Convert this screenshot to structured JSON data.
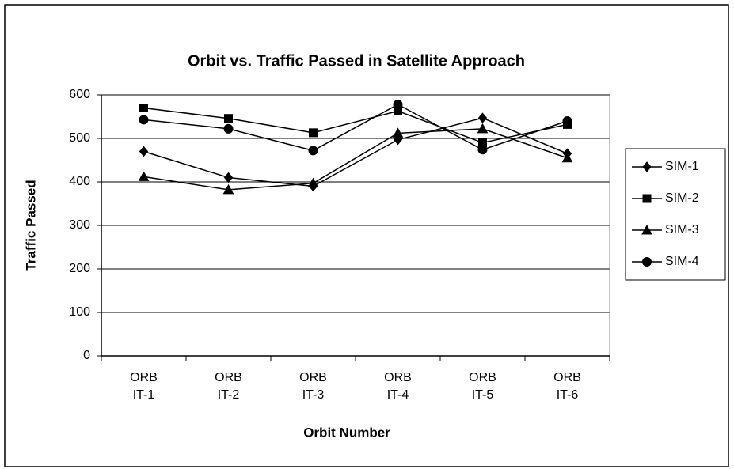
{
  "chart_data": {
    "type": "line",
    "title": "Orbit vs. Traffic Passed in Satellite Approach",
    "x_label": "Orbit Number",
    "y_label": "Traffic Passed",
    "categories": [
      "ORB IT-1",
      "ORB IT-2",
      "ORB IT-3",
      "ORB IT-4",
      "ORB IT-5",
      "ORB IT-6"
    ],
    "series": [
      {
        "name": "SIM-1",
        "color": "#000000",
        "marker": "diamond",
        "values": [
          470,
          410,
          390,
          497,
          547,
          465
        ]
      },
      {
        "name": "SIM-2",
        "color": "#000000",
        "marker": "square",
        "values": [
          570,
          546,
          513,
          563,
          490,
          532
        ]
      },
      {
        "name": "SIM-3",
        "color": "#000000",
        "marker": "triangle",
        "values": [
          412,
          382,
          397,
          512,
          522,
          455
        ]
      },
      {
        "name": "SIM-4",
        "color": "#000000",
        "marker": "circle",
        "values": [
          543,
          522,
          472,
          578,
          474,
          540
        ]
      }
    ],
    "ylim": [
      0,
      600
    ],
    "yticks": [
      0,
      100,
      200,
      300,
      400,
      500,
      600
    ],
    "grid": true,
    "legend": "right"
  }
}
